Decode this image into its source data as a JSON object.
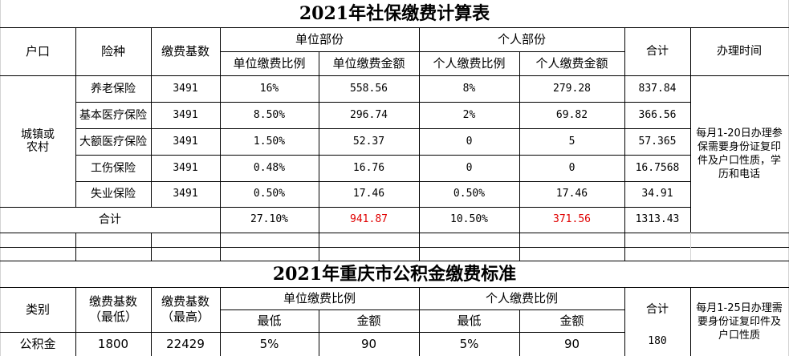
{
  "table1": {
    "title": "2021年社保缴费计算表",
    "headers": {
      "hukou": "户口",
      "insurance_type": "险种",
      "base": "缴费基数",
      "employer_group": "单位部份",
      "employer_ratio": "单位缴费比例",
      "employer_amount": "单位缴费金额",
      "personal_group": "个人部份",
      "personal_ratio": "个人缴费比例",
      "personal_amount": "个人缴费金额",
      "total": "合计",
      "processing_time": "办理时间"
    },
    "hukou_value": "城镇或\n农村",
    "rows": [
      {
        "type": "养老保险",
        "base": "3491",
        "er": "16%",
        "ea": "558.56",
        "pr": "8%",
        "pa": "279.28",
        "total": "837.84"
      },
      {
        "type": "基本医疗保险",
        "base": "3491",
        "er": "8.50%",
        "ea": "296.74",
        "pr": "2%",
        "pa": "69.82",
        "total": "366.56"
      },
      {
        "type": "大额医疗保险",
        "base": "3491",
        "er": "1.50%",
        "ea": "52.37",
        "pr": "0",
        "pa": "5",
        "total": "57.365"
      },
      {
        "type": "工伤保险",
        "base": "3491",
        "er": "0.48%",
        "ea": "16.76",
        "pr": "0",
        "pa": "0",
        "total": "16.7568"
      },
      {
        "type": "失业保险",
        "base": "3491",
        "er": "0.50%",
        "ea": "17.46",
        "pr": "0.50%",
        "pa": "17.46",
        "total": "34.91"
      }
    ],
    "sum_row": {
      "label": "合计",
      "er": "27.10%",
      "ea": "941.87",
      "pr": "10.50%",
      "pa": "371.56",
      "total": "1313.43"
    },
    "processing_note": "每月1-20日办理参保需要身份证复印件及户口性质，学历和电话",
    "colors": {
      "highlight_red": "#e00000"
    }
  },
  "table2": {
    "title": "2021年重庆市公积金缴费标准",
    "headers": {
      "category": "类别",
      "base_min": "缴费基数\n（最低）",
      "base_max": "缴费基数\n（最高）",
      "employer_ratio": "单位缴费比例",
      "personal_ratio": "个人缴费比例",
      "min": "最低",
      "amount": "金额",
      "total": "合计"
    },
    "row": {
      "category": "公积金",
      "base_min": "1800",
      "base_max": "22429",
      "er_min": "5%",
      "er_amount": "90",
      "pr_min": "5%",
      "pr_amount": "90",
      "total": "180"
    },
    "processing_note": "每月1-25日办理需要身份证复印件及户口性质"
  }
}
